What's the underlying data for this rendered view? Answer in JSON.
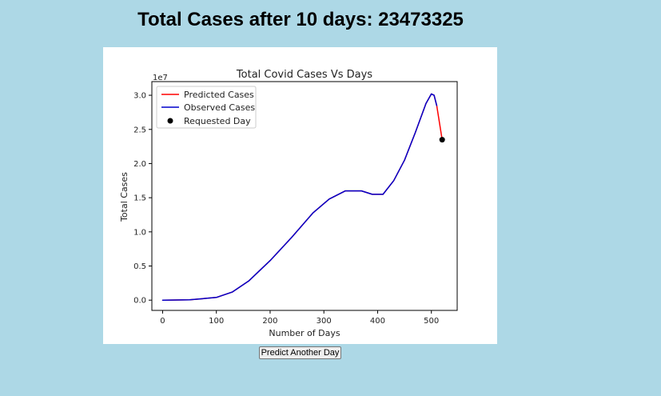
{
  "page": {
    "title": "Total Cases after 10 days: 23473325",
    "button_label": "Predict Another Day"
  },
  "chart_data": {
    "type": "line",
    "title": "Total Covid Cases Vs Days",
    "xlabel": "Number of Days",
    "ylabel": "Total Cases",
    "y_scale_label": "1e7",
    "xlim": [
      -20,
      548
    ],
    "ylim": [
      -0.15,
      3.2
    ],
    "x_ticks": [
      0,
      100,
      200,
      300,
      400,
      500
    ],
    "x_tick_labels": [
      "0",
      "100",
      "200",
      "300",
      "400",
      "500"
    ],
    "y_ticks": [
      0.0,
      0.5,
      1.0,
      1.5,
      2.0,
      2.5,
      3.0
    ],
    "y_tick_labels": [
      "0.0",
      "0.5",
      "1.0",
      "1.5",
      "2.0",
      "2.5",
      "3.0"
    ],
    "grid": false,
    "legend_position": "top-left",
    "series": [
      {
        "name": "Predicted Cases",
        "color": "#ff0000",
        "x": [
          0,
          50,
          100,
          130,
          160,
          200,
          240,
          280,
          310,
          340,
          370,
          390,
          410,
          430,
          450,
          470,
          490,
          500,
          505,
          510,
          515,
          520
        ],
        "y": [
          0.0,
          0.005,
          0.04,
          0.12,
          0.28,
          0.58,
          0.92,
          1.28,
          1.48,
          1.6,
          1.6,
          1.55,
          1.55,
          1.75,
          2.05,
          2.45,
          2.88,
          3.02,
          3.0,
          2.85,
          2.6,
          2.35
        ]
      },
      {
        "name": "Observed Cases",
        "color": "#0000cc",
        "x": [
          0,
          50,
          100,
          130,
          160,
          200,
          240,
          280,
          310,
          340,
          370,
          390,
          410,
          430,
          450,
          470,
          490,
          500,
          505,
          510
        ],
        "y": [
          0.0,
          0.005,
          0.04,
          0.12,
          0.28,
          0.58,
          0.92,
          1.28,
          1.48,
          1.6,
          1.6,
          1.55,
          1.55,
          1.75,
          2.05,
          2.45,
          2.88,
          3.02,
          3.0,
          2.85
        ]
      }
    ],
    "points": [
      {
        "name": "Requested Day",
        "x": 520,
        "y": 2.35,
        "color": "#000000"
      }
    ]
  }
}
